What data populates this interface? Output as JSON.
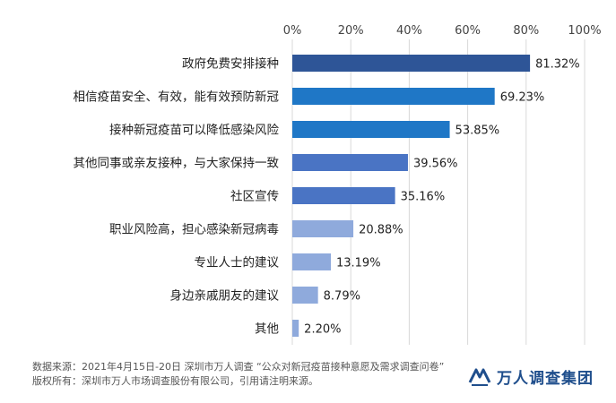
{
  "chart_data": {
    "type": "bar",
    "orientation": "horizontal",
    "title": "",
    "xlabel": "",
    "ylabel": "",
    "xlim": [
      0,
      100
    ],
    "x_ticks": [
      "0%",
      "20%",
      "40%",
      "60%",
      "80%",
      "100%"
    ],
    "grid": true,
    "categories": [
      "政府免费安排接种",
      "相信疫苗安全、有效，能有效预防新冠",
      "接种新冠疫苗可以降低感染风险",
      "其他同事或亲友接种，与大家保持一致",
      "社区宣传",
      "职业风险高，担心感染新冠病毒",
      "专业人士的建议",
      "身边亲戚朋友的建议",
      "其他"
    ],
    "values": [
      81.32,
      69.23,
      53.85,
      39.56,
      35.16,
      20.88,
      13.19,
      8.79,
      2.2
    ],
    "value_labels": [
      "81.32%",
      "69.23%",
      "53.85%",
      "39.56%",
      "35.16%",
      "20.88%",
      "13.19%",
      "8.79%",
      "2.20%"
    ],
    "bar_colors": [
      "#2e5597",
      "#1f77c6",
      "#1f77c6",
      "#4a74c4",
      "#4a74c4",
      "#8faadc",
      "#8faadc",
      "#8faadc",
      "#8faadc"
    ]
  },
  "footer": {
    "source_line": "数据来源：2021年4月15日-20日 深圳市万人调查 “公众对新冠疫苗接种意愿及需求调查问卷”",
    "copyright_line": "版权所有：深圳市万人市场调查股份有限公司，引用请注明来源。"
  },
  "logo": {
    "text": "万人调查集团",
    "icon": "wanren-logo-icon",
    "color": "#1f4e8c"
  }
}
